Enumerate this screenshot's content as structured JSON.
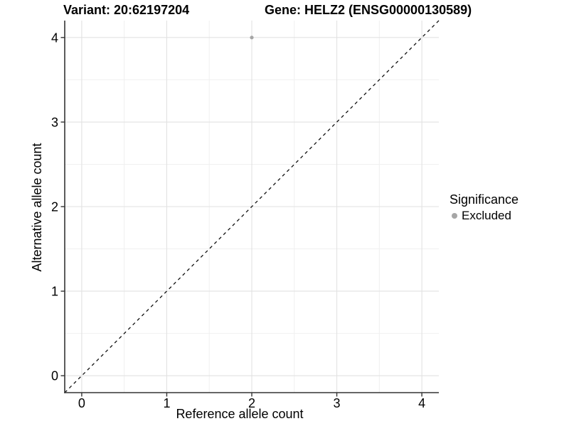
{
  "header": {
    "variant_title": "Variant: 20:62197204",
    "gene_title": "Gene: HELZ2 (ENSG00000130589)"
  },
  "axes": {
    "x_label": "Reference allele count",
    "y_label": "Alternative allele count"
  },
  "legend": {
    "title": "Significance",
    "items": [
      {
        "label": "Excluded",
        "color": "#a6a6a6"
      }
    ]
  },
  "chart_data": {
    "type": "scatter",
    "title_left": "Variant: 20:62197204",
    "title_right": "Gene: HELZ2 (ENSG00000130589)",
    "xlabel": "Reference allele count",
    "ylabel": "Alternative allele count",
    "xlim": [
      -0.2,
      4.2
    ],
    "ylim": [
      -0.2,
      4.2
    ],
    "x_ticks": [
      0,
      1,
      2,
      3,
      4
    ],
    "y_ticks": [
      0,
      1,
      2,
      3,
      4
    ],
    "x_minor_ticks": [
      0.5,
      1.5,
      2.5,
      3.5
    ],
    "y_minor_ticks": [
      0.5,
      1.5,
      2.5,
      3.5
    ],
    "grid": "major+minor",
    "legend_position": "right",
    "legend_title": "Significance",
    "series": [
      {
        "name": "Excluded",
        "color": "#a6a6a6",
        "points": [
          {
            "x": 2,
            "y": 4
          }
        ]
      }
    ],
    "reference_line": {
      "type": "identity",
      "equation": "y = x",
      "style": "dashed",
      "color": "#111111"
    },
    "colors": {
      "background": "#ffffff",
      "grid_major": "#e2e2e2",
      "grid_minor": "#f0f0f0",
      "axis_line": "#333333",
      "tick": "#333333",
      "text": "#000000"
    }
  }
}
